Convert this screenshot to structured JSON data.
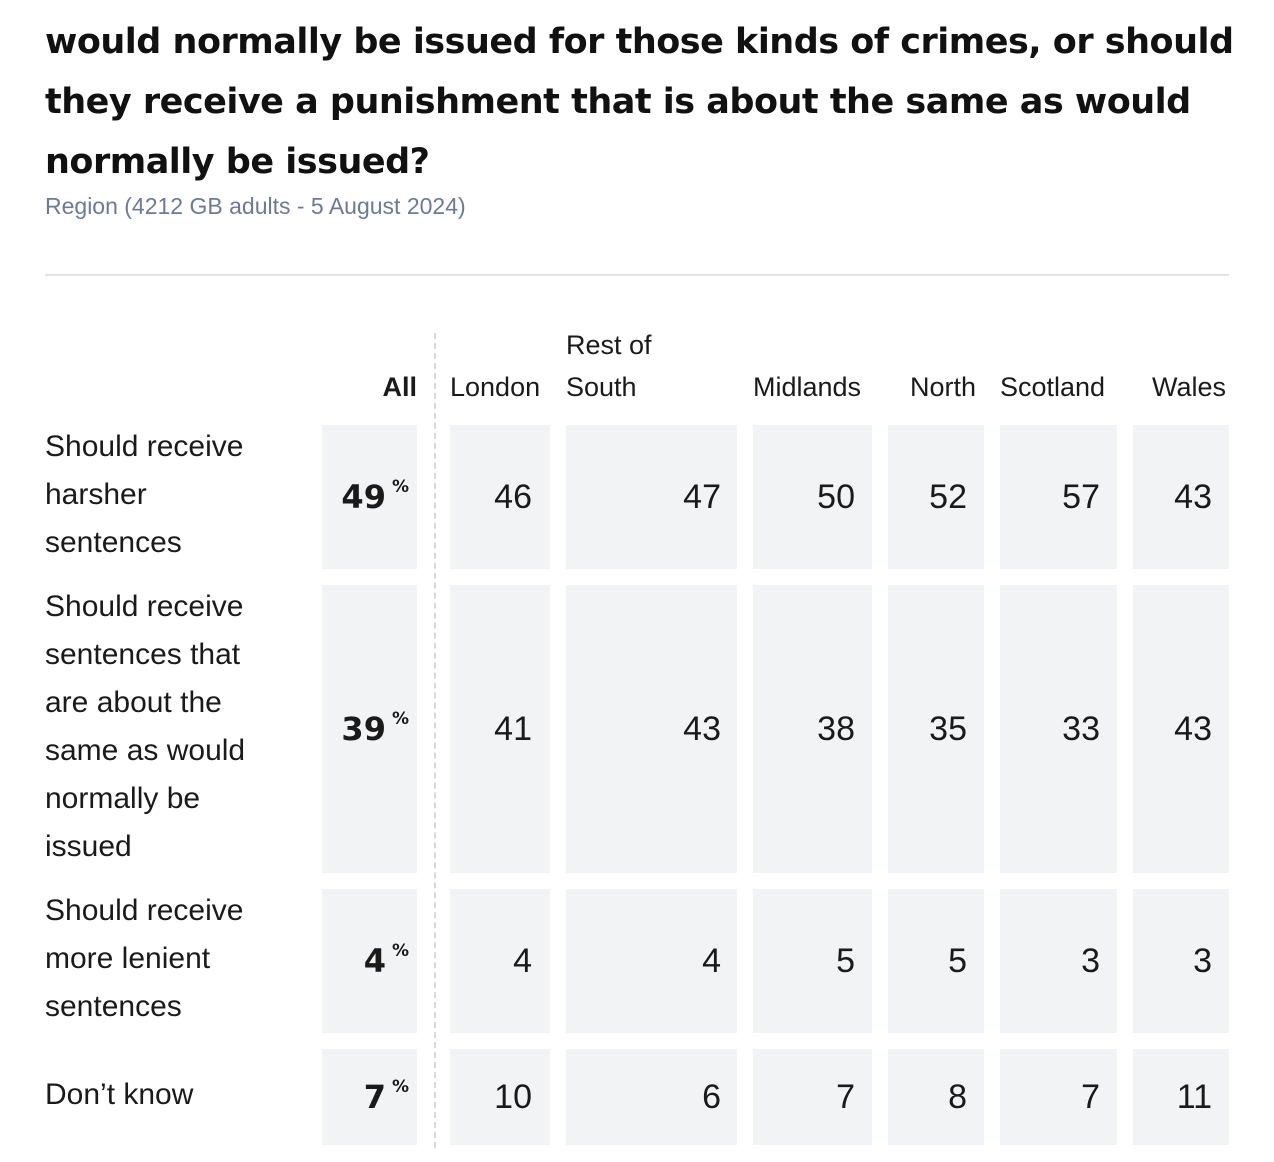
{
  "title": "would normally be issued for those kinds of crimes, or should they receive a punishment that is about the same as would normally be issued?",
  "subtitle": "Region (4212 GB adults - 5 August 2024)",
  "chart_data": {
    "type": "table",
    "percent_symbol": "%",
    "columns": [
      "All",
      "London",
      "Rest of South",
      "Midlands",
      "North",
      "Scotland",
      "Wales"
    ],
    "rows": [
      {
        "label": "Should receive harsher sentences",
        "values": [
          49,
          46,
          47,
          50,
          52,
          57,
          43
        ]
      },
      {
        "label": "Should receive sentences that are about the same as would normally be issued",
        "values": [
          39,
          41,
          43,
          38,
          35,
          33,
          43
        ]
      },
      {
        "label": "Should receive more lenient sentences",
        "values": [
          4,
          4,
          4,
          5,
          5,
          3,
          3
        ]
      },
      {
        "label": "Don’t know",
        "values": [
          7,
          10,
          6,
          7,
          8,
          7,
          11
        ]
      }
    ]
  }
}
